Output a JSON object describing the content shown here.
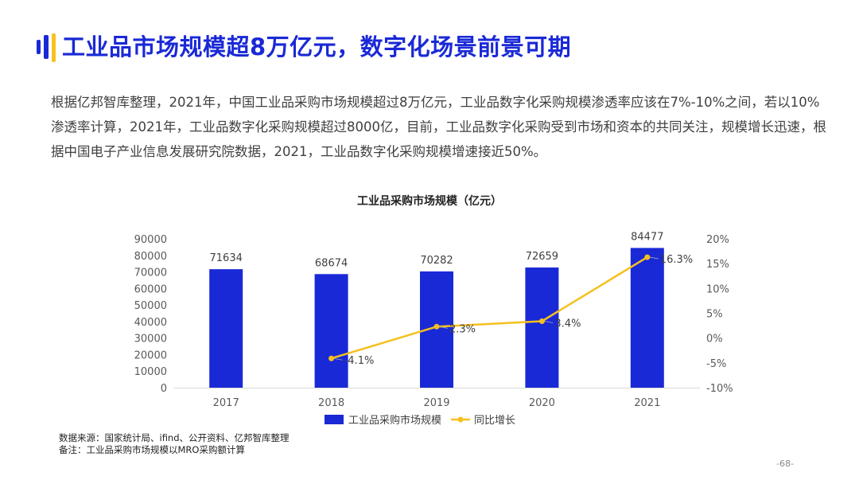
{
  "page": {
    "title": "工业品市场规模超8万亿元，数字化场景前景可期",
    "intro": "根据亿邦智库整理，2021年，中国工业品采购市场规模超过8万亿元，工业品数字化采购规模渗透率应该在7%-10%之间，若以10%渗透率计算，2021年，工业品数字化采购规模超过8000亿，目前，工业品数字化采购受到市场和资本的共同关注，规模增长迅速，根据中国电子产业信息发展研究院数据，2021，工业品数字化采购规模增速接近50%。",
    "source": "数据来源：国家统计局、ifind、公开资料、亿邦智库整理",
    "note": "备注：工业品采购市场规模以MRO采购额计算",
    "page_number": "-68-"
  },
  "colors": {
    "accent": "#1a29d6",
    "highlight": "#f7c21d",
    "bar": "#1a29d6",
    "line": "#f5c01f"
  },
  "chart_data": {
    "type": "bar",
    "title": "工业品采购市场规模（亿元）",
    "categories": [
      "2017",
      "2018",
      "2019",
      "2020",
      "2021"
    ],
    "series": [
      {
        "name": "工业品采购市场规模",
        "type": "bar",
        "axis": "left",
        "values": [
          71634,
          68674,
          70282,
          72659,
          84477
        ],
        "labels": [
          "71634",
          "68674",
          "70282",
          "72659",
          "84477"
        ]
      },
      {
        "name": "同比增长",
        "type": "line",
        "axis": "right",
        "values": [
          null,
          -4.1,
          2.3,
          3.4,
          16.3
        ],
        "labels": [
          "",
          "-4.1%",
          "2.3%",
          "3.4%",
          "16.3%"
        ]
      }
    ],
    "ylim": [
      0,
      90000
    ],
    "yticks": [
      "0",
      "10000",
      "20000",
      "30000",
      "40000",
      "50000",
      "60000",
      "70000",
      "80000",
      "90000"
    ],
    "y2lim": [
      -10,
      20
    ],
    "y2ticks": [
      "-10%",
      "-5%",
      "0%",
      "5%",
      "10%",
      "15%",
      "20%"
    ],
    "legend_position": "bottom",
    "grid": false
  }
}
